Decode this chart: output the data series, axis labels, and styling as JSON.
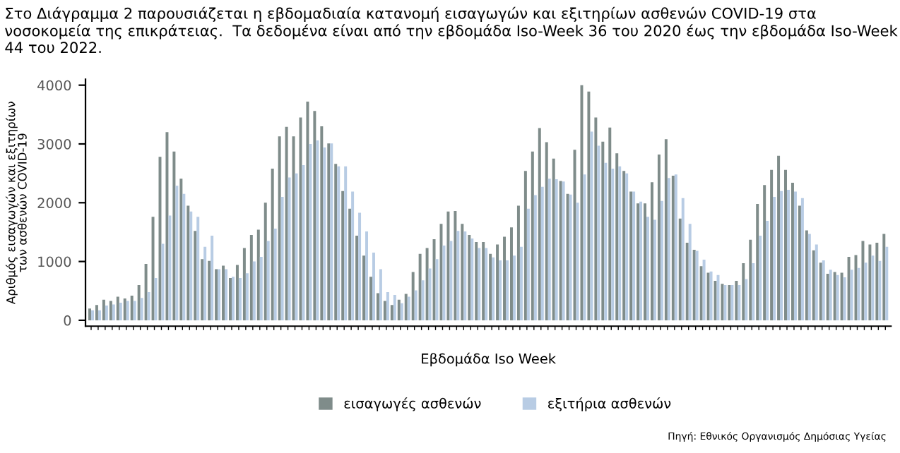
{
  "chart_data": {
    "type": "bar",
    "title": "Στο Διάγραμμα 2 παρουσιάζεται η εβδομαδιαία κατανομή εισαγωγών και εξιτηρίων ασθενών COVID-19 στα νοσοκομεία της επικράτειας.  Τα δεδομένα είναι από την εβδομάδα Iso-Week 36 του 2020 έως την εβδομάδα Iso-Week 44 του 2022.",
    "xlabel": "Εβδομάδα Iso Week",
    "ylabel": "Αριθμός εισαγωγών και εξιτηρίων των ασθενών COVID-19",
    "annotations": [
      "Πηγή: Εθνικός Οργανισμός Δημόσιας Υγείας"
    ],
    "categories": [
      null,
      null,
      null,
      null,
      null,
      null,
      null,
      null,
      null,
      null,
      null,
      null,
      null,
      null,
      null,
      null,
      null,
      null,
      null,
      null,
      null,
      null,
      null,
      null,
      null,
      null,
      null,
      null,
      null,
      null,
      null,
      null,
      null,
      null,
      null,
      null,
      null,
      null,
      null,
      null,
      null,
      null,
      null,
      null,
      null,
      null,
      null,
      null,
      null,
      null,
      null,
      null,
      null,
      null,
      null,
      null,
      null,
      null,
      null,
      null,
      null,
      null,
      null,
      null,
      null,
      null,
      null,
      null,
      null,
      null,
      null,
      null,
      null,
      null,
      null,
      null,
      null,
      null,
      null,
      null,
      null,
      null,
      null,
      null,
      null,
      null,
      null,
      null,
      null,
      null,
      null,
      null,
      null,
      null,
      null,
      null,
      null,
      null,
      null,
      null,
      null,
      null,
      null,
      null,
      null,
      null,
      null,
      null,
      null,
      null,
      null,
      null,
      null,
      null
    ],
    "series": [
      {
        "name": "εισαγωγές ασθενών",
        "color": "#7f8c8a",
        "values": [
          200,
          260,
          350,
          330,
          400,
          370,
          420,
          600,
          960,
          1760,
          2780,
          3200,
          2870,
          2410,
          1950,
          1520,
          1040,
          1010,
          870,
          930,
          720,
          940,
          1230,
          1450,
          1540,
          2000,
          2580,
          3130,
          3290,
          3130,
          3450,
          3720,
          3560,
          3300,
          3010,
          2660,
          2200,
          1900,
          1440,
          1100,
          740,
          460,
          330,
          260,
          350,
          450,
          820,
          1130,
          1230,
          1380,
          1640,
          1850,
          1860,
          1640,
          1450,
          1330,
          1330,
          1130,
          1290,
          1420,
          1580,
          1950,
          2540,
          2870,
          3270,
          3030,
          2750,
          2370,
          2150,
          2900,
          4000,
          3890,
          3450,
          3040,
          3280,
          2840,
          2540,
          2190,
          1990,
          1990,
          2350,
          2820,
          3080,
          2460,
          1730,
          1320,
          1200,
          920,
          810,
          670,
          620,
          600,
          670,
          970,
          1370,
          1980,
          2300,
          2560,
          2800,
          2560,
          2340,
          1950,
          1530,
          1190,
          980,
          790,
          820,
          810,
          1080,
          1110,
          1350,
          1290,
          1320,
          1470
        ]
      },
      {
        "name": "εξιτήρια ασθενών",
        "color": "#b8cce4",
        "values": [
          170,
          170,
          250,
          270,
          300,
          330,
          330,
          380,
          480,
          720,
          1300,
          1780,
          2290,
          2150,
          1850,
          1760,
          1250,
          1440,
          870,
          870,
          740,
          720,
          800,
          1000,
          1080,
          1350,
          1560,
          2100,
          2430,
          2500,
          2640,
          3000,
          3060,
          2940,
          3010,
          2620,
          2620,
          2190,
          1830,
          1510,
          1150,
          870,
          480,
          430,
          290,
          400,
          510,
          680,
          880,
          1040,
          1270,
          1350,
          1520,
          1510,
          1390,
          1230,
          1230,
          1070,
          1020,
          1020,
          1100,
          1250,
          1900,
          2130,
          2270,
          2410,
          2400,
          2360,
          2140,
          2000,
          2480,
          3210,
          2970,
          2680,
          2580,
          2620,
          2500,
          2190,
          2020,
          1760,
          1710,
          2030,
          2420,
          2480,
          2080,
          1640,
          1180,
          1030,
          830,
          770,
          600,
          600,
          600,
          700,
          970,
          1440,
          1690,
          2100,
          2200,
          2220,
          2190,
          2080,
          1470,
          1290,
          1020,
          860,
          770,
          730,
          860,
          890,
          980,
          1100,
          1010,
          1250
        ]
      }
    ],
    "ylim": [
      -100,
      4100
    ],
    "yticks": [
      0,
      1000,
      2000,
      3000,
      4000
    ],
    "grid": false,
    "legend": "bottom"
  }
}
